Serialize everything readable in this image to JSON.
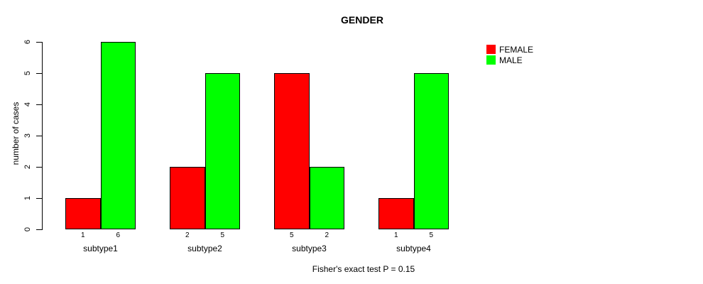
{
  "chart_data": {
    "type": "bar",
    "title": "GENDER",
    "categories": [
      "subtype1",
      "subtype2",
      "subtype3",
      "subtype4"
    ],
    "series": [
      {
        "name": "FEMALE",
        "color": "#FF0000",
        "values": [
          1,
          2,
          5,
          1
        ]
      },
      {
        "name": "MALE",
        "color": "#00FF00",
        "values": [
          6,
          5,
          2,
          5
        ]
      }
    ],
    "xlabel": "",
    "ylabel": "number of cases",
    "ylim": [
      0,
      6
    ],
    "yticks": [
      0,
      1,
      2,
      3,
      4,
      5,
      6
    ],
    "grid": false,
    "legend_position": "top-right",
    "show_bar_values": true,
    "annotation": "Fisher's exact test P = 0.15"
  }
}
